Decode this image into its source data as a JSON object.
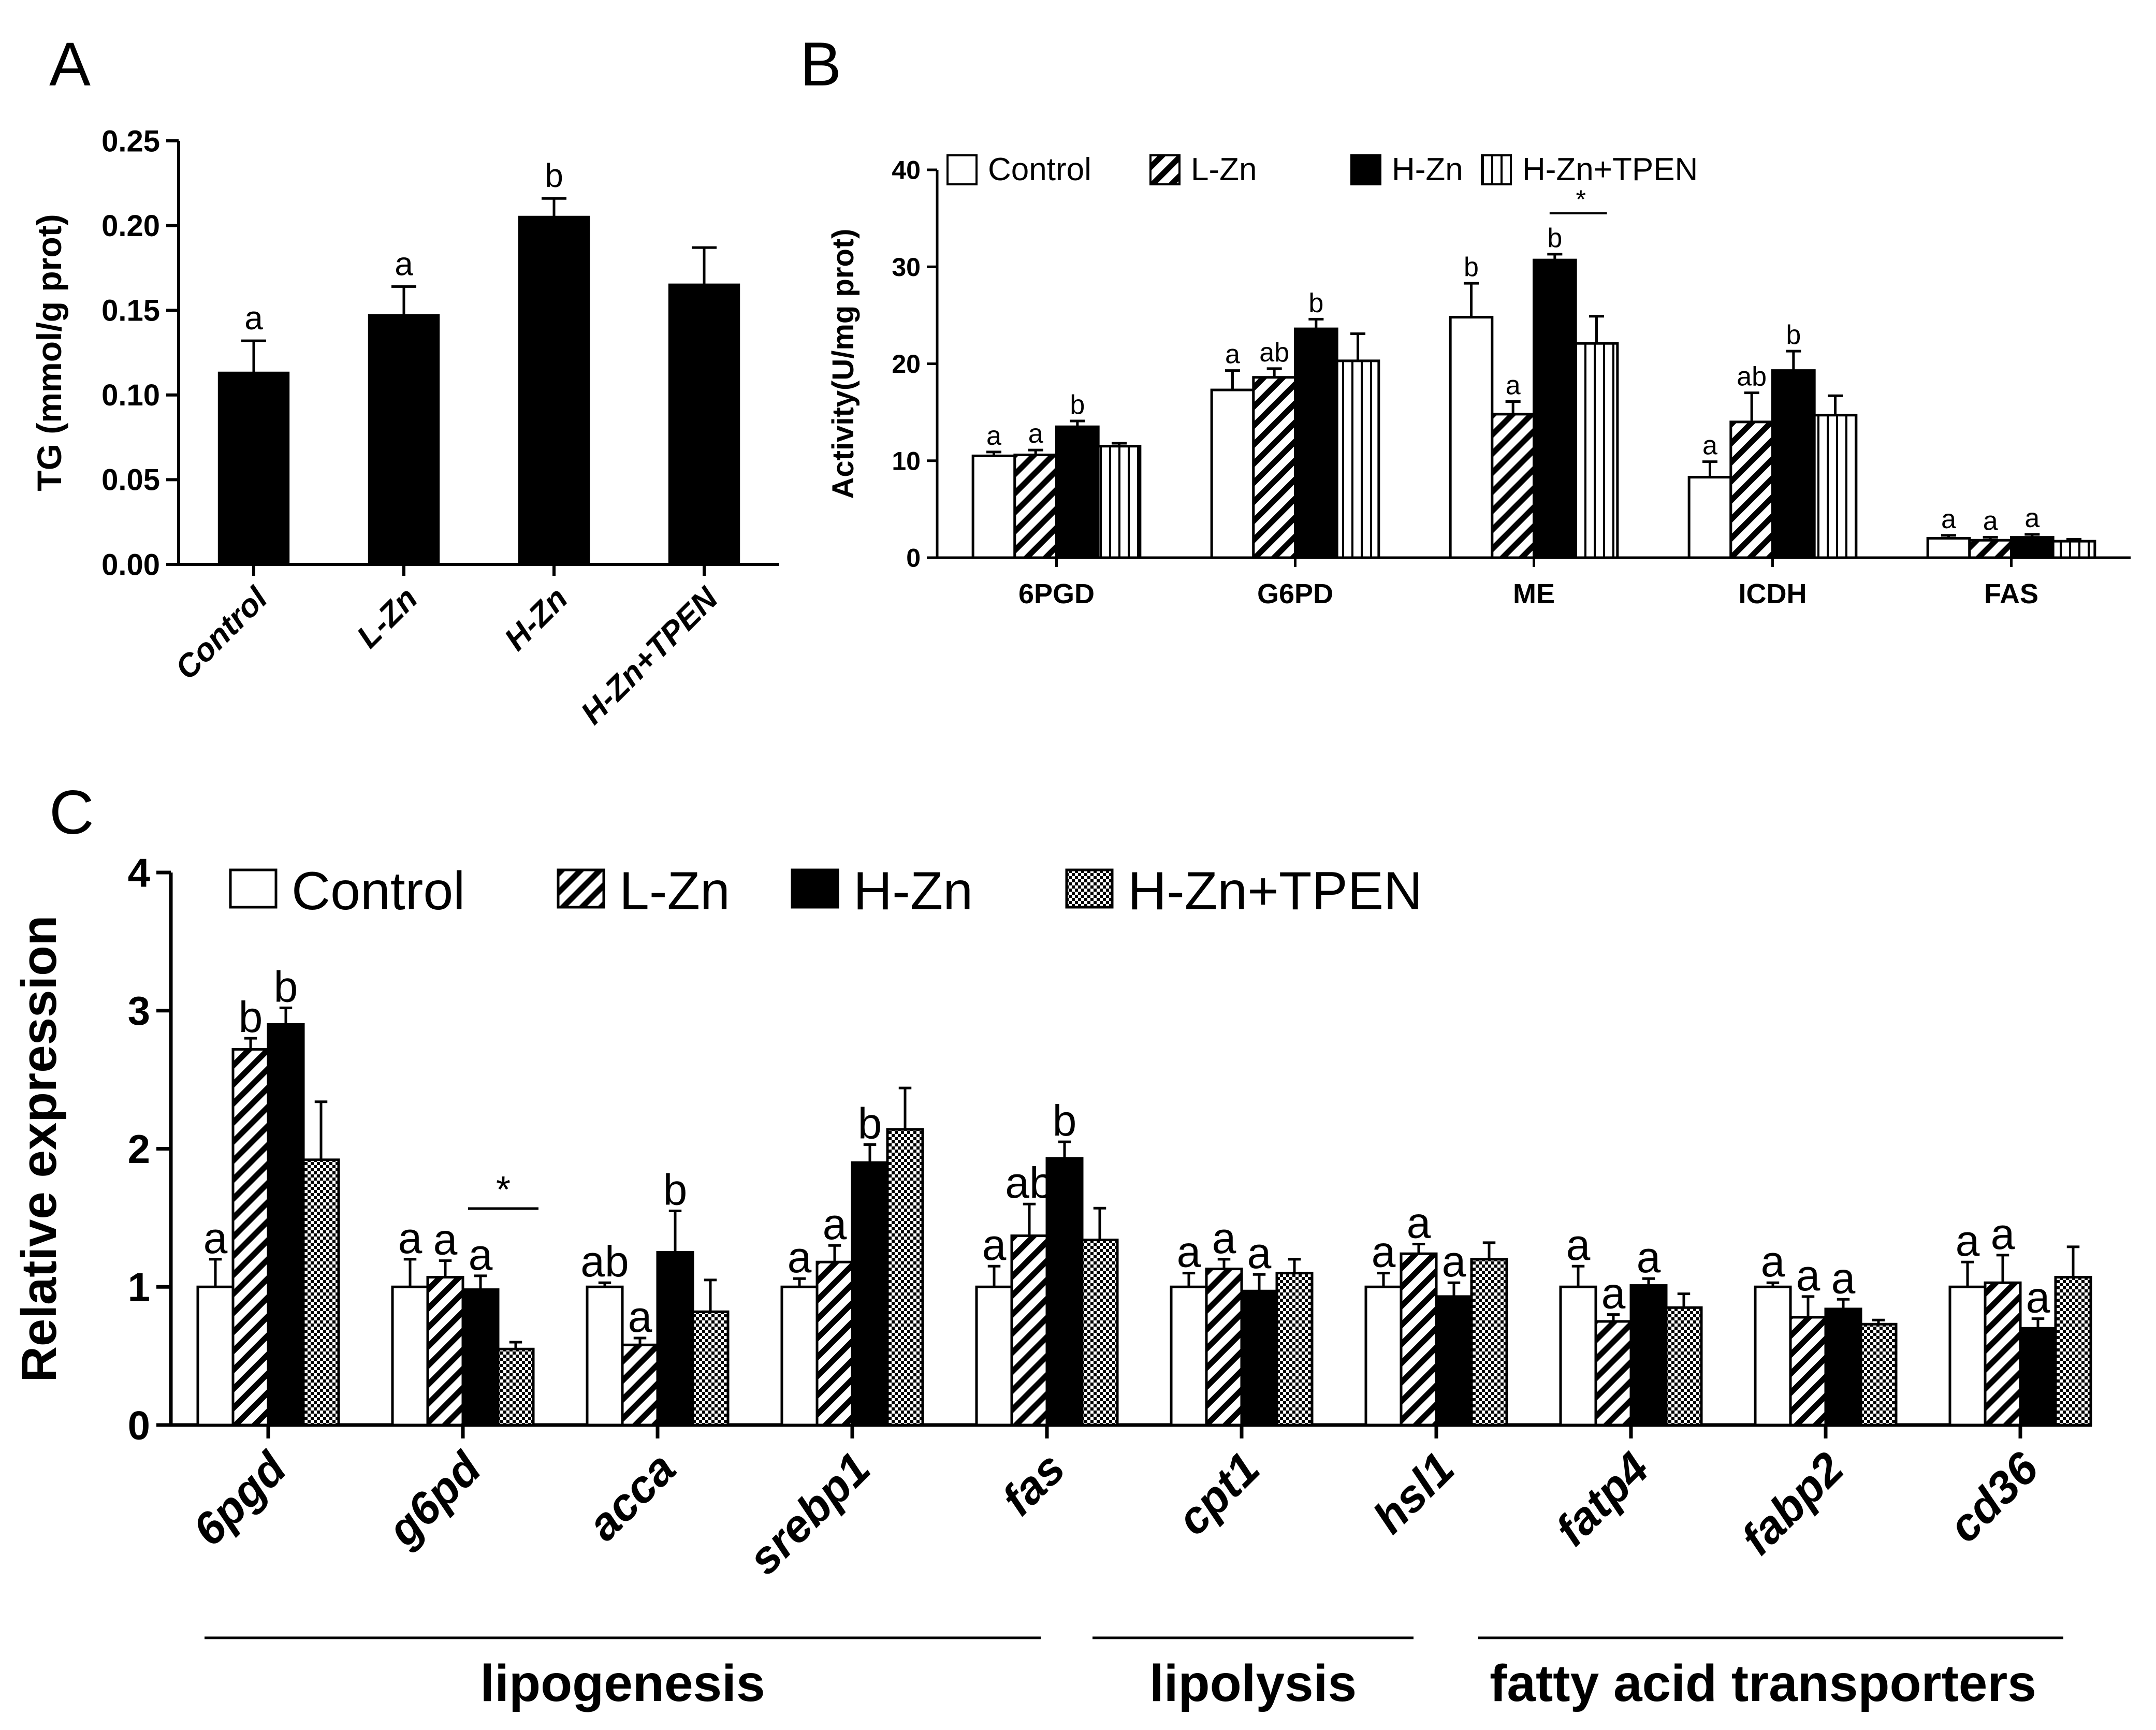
{
  "chart_data": [
    {
      "panel": "A",
      "type": "bar",
      "ylabel": "TG (mmol/g prot)",
      "ylim": [
        0,
        0.25
      ],
      "yticks": [
        "0.00",
        "0.05",
        "0.10",
        "0.15",
        "0.20",
        "0.25"
      ],
      "categories": [
        "Control",
        "L-Zn",
        "H-Zn",
        "H-Zn+TPEN"
      ],
      "values": [
        0.113,
        0.147,
        0.205,
        0.165
      ],
      "errors": [
        0.019,
        0.017,
        0.011,
        0.022
      ],
      "letters": [
        "a",
        "a",
        "b",
        ""
      ]
    },
    {
      "panel": "B",
      "type": "bar",
      "ylabel": "Activity(U/mg prot)",
      "ylim": [
        0,
        40
      ],
      "yticks": [
        "0",
        "10",
        "20",
        "30",
        "40"
      ],
      "categories": [
        "6PGD",
        "G6PD",
        "ME",
        "ICDH",
        "FAS"
      ],
      "legend": [
        "Control",
        "L-Zn",
        "H-Zn",
        "H-Zn+TPEN"
      ],
      "series": [
        {
          "name": "Control",
          "values": [
            10.5,
            17.3,
            24.8,
            8.3,
            2.0
          ],
          "errors": [
            0.4,
            2.0,
            3.5,
            1.6,
            0.3
          ],
          "letters": [
            "a",
            "a",
            "b",
            "a",
            "a"
          ]
        },
        {
          "name": "L-Zn",
          "values": [
            10.6,
            18.6,
            14.8,
            14.0,
            1.8
          ],
          "errors": [
            0.5,
            0.9,
            1.3,
            3.0,
            0.3
          ],
          "letters": [
            "a",
            "ab",
            "a",
            "ab",
            "a"
          ]
        },
        {
          "name": "H-Zn",
          "values": [
            13.5,
            23.6,
            30.7,
            19.3,
            2.1
          ],
          "errors": [
            0.6,
            1.0,
            0.6,
            2.0,
            0.3
          ],
          "letters": [
            "b",
            "b",
            "b",
            "b",
            "a"
          ]
        },
        {
          "name": "H-Zn+TPEN",
          "values": [
            11.5,
            20.3,
            22.1,
            14.7,
            1.7
          ],
          "errors": [
            0.3,
            2.8,
            2.8,
            2.0,
            0.2
          ],
          "letters": [
            "",
            "",
            "",
            "",
            ""
          ]
        }
      ],
      "significance": [
        {
          "category": "ME",
          "from_series": 2,
          "to_series": 3,
          "label": "*"
        }
      ]
    },
    {
      "panel": "C",
      "type": "bar",
      "ylabel": "Relative expression",
      "ylim": [
        0,
        4
      ],
      "yticks": [
        "0",
        "1",
        "2",
        "3",
        "4"
      ],
      "categories": [
        "6pgd",
        "g6pd",
        "acca",
        "srebp1",
        "fas",
        "cpt1",
        "hsl1",
        "fatp4",
        "fabp2",
        "cd36"
      ],
      "legend": [
        "Control",
        "L-Zn",
        "H-Zn",
        "H-Zn+TPEN"
      ],
      "series": [
        {
          "name": "Control",
          "values": [
            1.0,
            1.0,
            1.0,
            1.0,
            1.0,
            1.0,
            1.0,
            1.0,
            1.0,
            1.0
          ],
          "errors": [
            0.2,
            0.2,
            0.03,
            0.06,
            0.15,
            0.1,
            0.1,
            0.15,
            0.03,
            0.18
          ],
          "letters": [
            "a",
            "a",
            "ab",
            "a",
            "a",
            "a",
            "a",
            "a",
            "a",
            "a"
          ]
        },
        {
          "name": "L-Zn",
          "values": [
            2.72,
            1.07,
            0.58,
            1.18,
            1.37,
            1.13,
            1.24,
            0.75,
            0.78,
            1.03
          ],
          "errors": [
            0.08,
            0.12,
            0.05,
            0.12,
            0.23,
            0.07,
            0.07,
            0.05,
            0.15,
            0.2
          ],
          "letters": [
            "b",
            "a",
            "a",
            "a",
            "ab",
            "a",
            "a",
            "a",
            "a",
            "a"
          ]
        },
        {
          "name": "H-Zn",
          "values": [
            2.9,
            0.98,
            1.25,
            1.9,
            1.93,
            0.97,
            0.93,
            1.01,
            0.84,
            0.7
          ],
          "errors": [
            0.12,
            0.1,
            0.3,
            0.13,
            0.12,
            0.12,
            0.1,
            0.05,
            0.07,
            0.07
          ],
          "letters": [
            "b",
            "a",
            "b",
            "b",
            "b",
            "a",
            "a",
            "a",
            "a",
            "a"
          ]
        },
        {
          "name": "H-Zn+TPEN",
          "values": [
            1.92,
            0.55,
            0.82,
            2.14,
            1.34,
            1.1,
            1.2,
            0.85,
            0.73,
            1.07
          ],
          "errors": [
            0.42,
            0.05,
            0.23,
            0.3,
            0.23,
            0.1,
            0.12,
            0.1,
            0.03,
            0.22
          ],
          "letters": [
            "",
            "",
            "",
            "",
            "",
            "",
            "",
            "",
            "",
            ""
          ]
        }
      ],
      "significance": [
        {
          "category": "g6pd",
          "from_series": 2,
          "to_series": 3,
          "label": "*"
        }
      ],
      "groups": [
        {
          "label": "lipogenesis",
          "start_category": 0,
          "end_category": 4
        },
        {
          "label": "lipolysis",
          "start_category": 5,
          "end_category": 6
        },
        {
          "label": "fatty acid transporters",
          "start_category": 7,
          "end_category": 9
        }
      ]
    }
  ],
  "panel_labels": {
    "a": "A",
    "b": "B",
    "c": "C"
  }
}
